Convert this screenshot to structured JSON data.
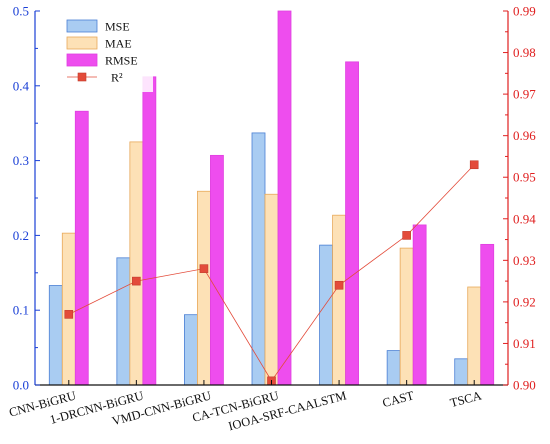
{
  "chart_data": {
    "type": "bar",
    "categories": [
      "CNN-BiGRU",
      "1-DRCNN-BiGRU",
      "VMD-CNN-BiGRU",
      "CA-TCN-BiGRU",
      "IOOA-SRF-CAALSTM",
      "CAST",
      "TSCA"
    ],
    "series": [
      {
        "name": "MSE",
        "values": [
          0.133,
          0.17,
          0.094,
          0.337,
          0.187,
          0.046,
          0.035
        ],
        "color": "#a9ccf2",
        "edge": "#4a7fd4"
      },
      {
        "name": "MAE",
        "values": [
          0.203,
          0.325,
          0.259,
          0.255,
          0.227,
          0.183,
          0.131
        ],
        "color": "#fde1b6",
        "edge": "#e8a95a"
      },
      {
        "name": "RMSE",
        "values": [
          0.366,
          0.412,
          0.307,
          0.5,
          0.432,
          0.214,
          0.188
        ],
        "color": "#ee4dee",
        "edge": "#e040e0"
      }
    ],
    "line_series": {
      "name": "R²",
      "axis": "right",
      "values": [
        0.917,
        0.925,
        0.928,
        0.901,
        0.924,
        0.936,
        0.953
      ],
      "color": "#e34b3a",
      "marker": "square"
    },
    "ylim": [
      0,
      0.5
    ],
    "ylim_right": [
      0.9,
      0.99
    ],
    "yticks": [
      "0.0",
      "0.1",
      "0.2",
      "0.3",
      "0.4",
      "0.5"
    ],
    "yticks_right": [
      "0.90",
      "0.91",
      "0.92",
      "0.93",
      "0.94",
      "0.95",
      "0.96",
      "0.97",
      "0.98",
      "0.99"
    ],
    "left_axis_color": "#1a3fd6",
    "right_axis_color": "#e02020",
    "legend": {
      "placement": "top-left",
      "labels": [
        "MSE",
        "MAE",
        "RMSE",
        "R²"
      ]
    },
    "grid": false
  }
}
